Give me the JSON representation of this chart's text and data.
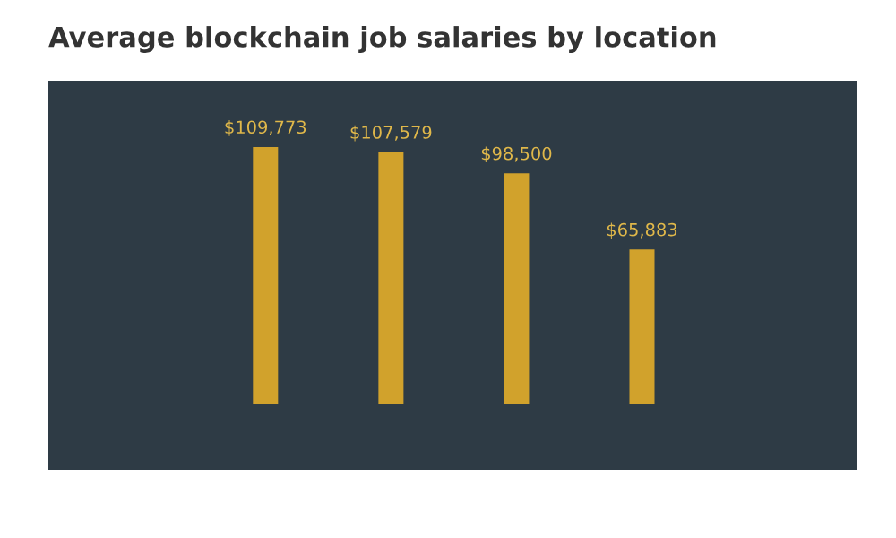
{
  "chart_data": {
    "type": "bar",
    "title": "Average blockchain job salaries by location",
    "categories": [
      null,
      null,
      null,
      null
    ],
    "values": [
      109773,
      107579,
      98500,
      65883
    ],
    "value_labels": [
      "$109,773",
      "$107,579",
      "$98,500",
      "$65,883"
    ],
    "color": "#d1a22c"
  }
}
